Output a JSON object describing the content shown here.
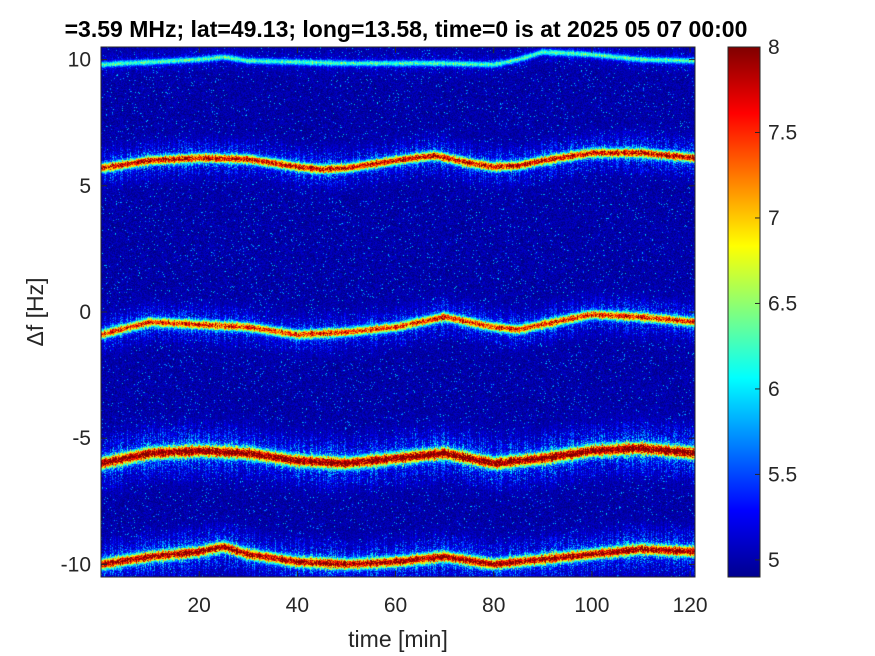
{
  "chart_data": {
    "type": "heatmap",
    "title": "=3.59 MHz;  lat=49.13; long=13.58, time=0 is at 2025 05 07 00:00",
    "xlabel": "time [min]",
    "ylabel": "Δf [Hz]",
    "xlim": [
      0,
      121
    ],
    "ylim": [
      -10.5,
      10.5
    ],
    "x_ticks": [
      20,
      40,
      60,
      80,
      100,
      120
    ],
    "y_ticks": [
      10,
      5,
      0,
      -5,
      -10
    ],
    "x_tick_labels": [
      "20",
      "40",
      "60",
      "80",
      "100",
      "120"
    ],
    "y_tick_labels": [
      "10",
      "5",
      "0",
      "-5",
      "-10"
    ],
    "colorbar": {
      "colormap": "jet",
      "range": [
        4.9,
        8
      ],
      "ticks": [
        8,
        7.5,
        7,
        6.5,
        6,
        5.5,
        5
      ],
      "tick_labels": [
        "8",
        "7.5",
        "7",
        "6.5",
        "6",
        "5.5",
        "5"
      ]
    },
    "background_value": 4.9,
    "traces": [
      {
        "time": [
          0,
          10,
          20,
          25,
          30,
          40,
          50,
          60,
          70,
          80,
          85,
          90,
          100,
          110,
          121
        ],
        "freq": [
          9.8,
          9.9,
          10.0,
          10.1,
          9.95,
          9.9,
          9.85,
          9.85,
          9.85,
          9.8,
          10.0,
          10.3,
          10.2,
          10.0,
          9.95
        ],
        "peak": 6.2,
        "width": 0.08
      },
      {
        "time": [
          0,
          10,
          20,
          30,
          40,
          45,
          50,
          60,
          68,
          75,
          80,
          85,
          90,
          100,
          110,
          121
        ],
        "freq": [
          5.7,
          6.0,
          6.1,
          6.05,
          5.75,
          5.65,
          5.7,
          6.0,
          6.2,
          5.9,
          5.75,
          5.8,
          6.0,
          6.3,
          6.3,
          6.1
        ],
        "peak": 7.6,
        "width": 0.12
      },
      {
        "time": [
          0,
          10,
          20,
          30,
          40,
          50,
          60,
          65,
          70,
          80,
          85,
          90,
          100,
          110,
          121
        ],
        "freq": [
          -0.9,
          -0.4,
          -0.5,
          -0.6,
          -0.9,
          -0.8,
          -0.6,
          -0.4,
          -0.2,
          -0.6,
          -0.7,
          -0.5,
          -0.1,
          -0.2,
          -0.4
        ],
        "peak": 7.4,
        "width": 0.12
      },
      {
        "time": [
          0,
          10,
          20,
          30,
          40,
          50,
          60,
          65,
          70,
          80,
          90,
          100,
          110,
          121
        ],
        "freq": [
          -6.0,
          -5.6,
          -5.5,
          -5.6,
          -5.9,
          -6.0,
          -5.8,
          -5.7,
          -5.6,
          -6.0,
          -5.8,
          -5.5,
          -5.4,
          -5.6
        ],
        "peak": 7.95,
        "width": 0.16
      },
      {
        "time": [
          0,
          10,
          20,
          25,
          30,
          40,
          50,
          60,
          70,
          80,
          90,
          100,
          110,
          121
        ],
        "freq": [
          -10.0,
          -9.7,
          -9.5,
          -9.3,
          -9.6,
          -9.9,
          -10.0,
          -9.9,
          -9.7,
          -10.0,
          -9.8,
          -9.6,
          -9.4,
          -9.5
        ],
        "peak": 7.8,
        "width": 0.14
      }
    ]
  }
}
